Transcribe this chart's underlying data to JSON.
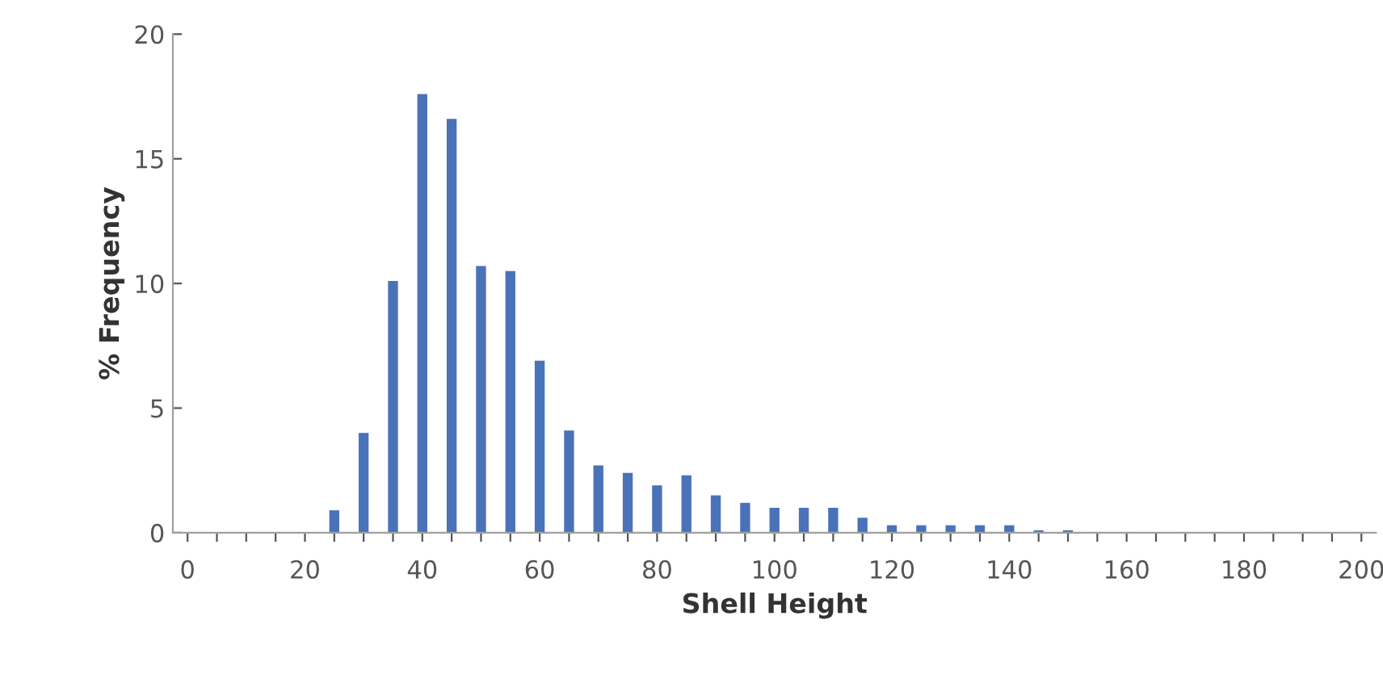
{
  "chart_data": {
    "type": "bar",
    "xlabel": "Shell Height",
    "ylabel": "% Frequency",
    "x": [
      25,
      30,
      35,
      40,
      45,
      50,
      55,
      60,
      65,
      70,
      75,
      80,
      85,
      90,
      95,
      100,
      105,
      110,
      115,
      120,
      125,
      130,
      135,
      140,
      145,
      150
    ],
    "values": [
      0.9,
      4.0,
      10.1,
      17.6,
      16.6,
      10.7,
      10.5,
      6.9,
      4.1,
      2.7,
      2.4,
      1.9,
      2.3,
      1.5,
      1.2,
      1.0,
      1.0,
      1.0,
      0.6,
      0.3,
      0.3,
      0.3,
      0.3,
      0.3,
      0.1,
      0.1
    ],
    "color": "#4a72b8",
    "xlim": [
      -2.5,
      202.5
    ],
    "xticks": [
      0,
      {
        "value": 5,
        "label": null
      },
      {
        "value": 10,
        "label": null
      },
      {
        "value": 15,
        "label": null
      },
      20,
      {
        "value": 25,
        "label": null
      },
      {
        "value": 30,
        "label": null
      },
      {
        "value": 35,
        "label": null
      },
      40,
      {
        "value": 45,
        "label": null
      },
      {
        "value": 50,
        "label": null
      },
      {
        "value": 55,
        "label": null
      },
      60,
      {
        "value": 65,
        "label": null
      },
      {
        "value": 70,
        "label": null
      },
      {
        "value": 75,
        "label": null
      },
      80,
      {
        "value": 85,
        "label": null
      },
      {
        "value": 90,
        "label": null
      },
      {
        "value": 95,
        "label": null
      },
      100,
      {
        "value": 105,
        "label": null
      },
      {
        "value": 110,
        "label": null
      },
      {
        "value": 115,
        "label": null
      },
      120,
      {
        "value": 125,
        "label": null
      },
      {
        "value": 130,
        "label": null
      },
      {
        "value": 135,
        "label": null
      },
      140,
      {
        "value": 145,
        "label": null
      },
      {
        "value": 150,
        "label": null
      },
      {
        "value": 155,
        "label": null
      },
      160,
      {
        "value": 165,
        "label": null
      },
      {
        "value": 170,
        "label": null
      },
      {
        "value": 175,
        "label": null
      },
      180,
      {
        "value": 185,
        "label": null
      },
      {
        "value": 190,
        "label": null
      },
      {
        "value": 195,
        "label": null
      },
      200
    ],
    "ylim": [
      0,
      20
    ],
    "yticks": [
      0,
      5,
      10,
      15,
      20
    ],
    "grid": false,
    "legend": false
  }
}
